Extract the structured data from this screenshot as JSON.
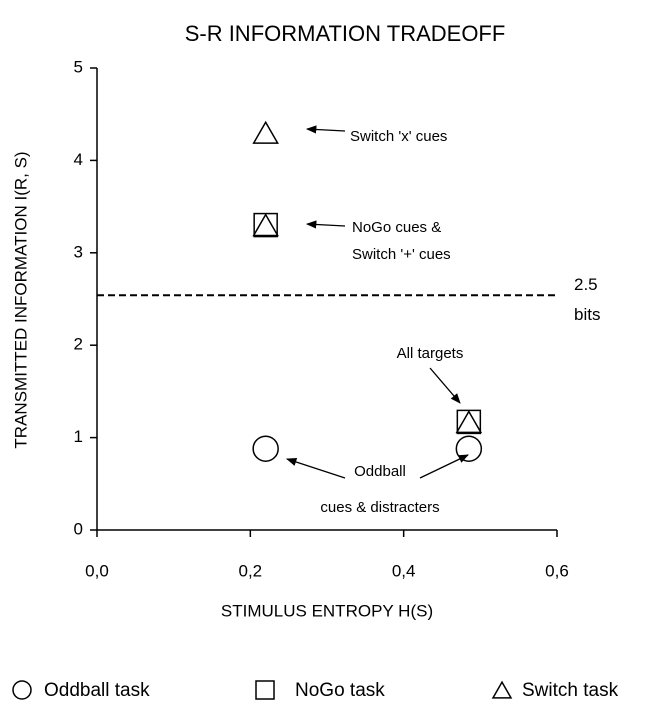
{
  "chart_data": {
    "type": "scatter",
    "title": "S-R INFORMATION TRADEOFF",
    "x_label": "STIMULUS ENTROPY H(S)",
    "y_label": "TRANSMITTED INFORMATION  I(R, S)",
    "xlim": [
      0,
      0.6
    ],
    "ylim": [
      0,
      5
    ],
    "xticks": [
      {
        "value": 0,
        "label": "0,0"
      },
      {
        "value": 0.2,
        "label": "0,2"
      },
      {
        "value": 0.4,
        "label": "0,4"
      },
      {
        "value": 0.6,
        "label": "0,6"
      }
    ],
    "yticks": [
      0,
      1,
      2,
      3,
      4,
      5
    ],
    "series": [
      {
        "name": "Oddball task",
        "marker": "circle",
        "color": "#000000",
        "x": [
          0.22,
          0.485
        ],
        "values": [
          0.88,
          0.88
        ]
      },
      {
        "name": "NoGo task",
        "marker": "square",
        "color": "#000000",
        "x": [
          0.22,
          0.485
        ],
        "values": [
          3.3,
          1.17
        ]
      },
      {
        "name": "Switch task",
        "marker": "triangle",
        "color": "#000000",
        "x": [
          0.22,
          0.22,
          0.485
        ],
        "values": [
          4.3,
          3.3,
          1.17
        ]
      }
    ],
    "hline": {
      "value": 2.54,
      "label": [
        "2.5",
        "bits"
      ]
    },
    "annotations": [
      [
        "Switch 'x' cues"
      ],
      [
        "NoGo cues &",
        "Switch '+' cues"
      ],
      [
        "All targets"
      ],
      [
        "Oddball",
        "cues & distracters"
      ]
    ]
  }
}
